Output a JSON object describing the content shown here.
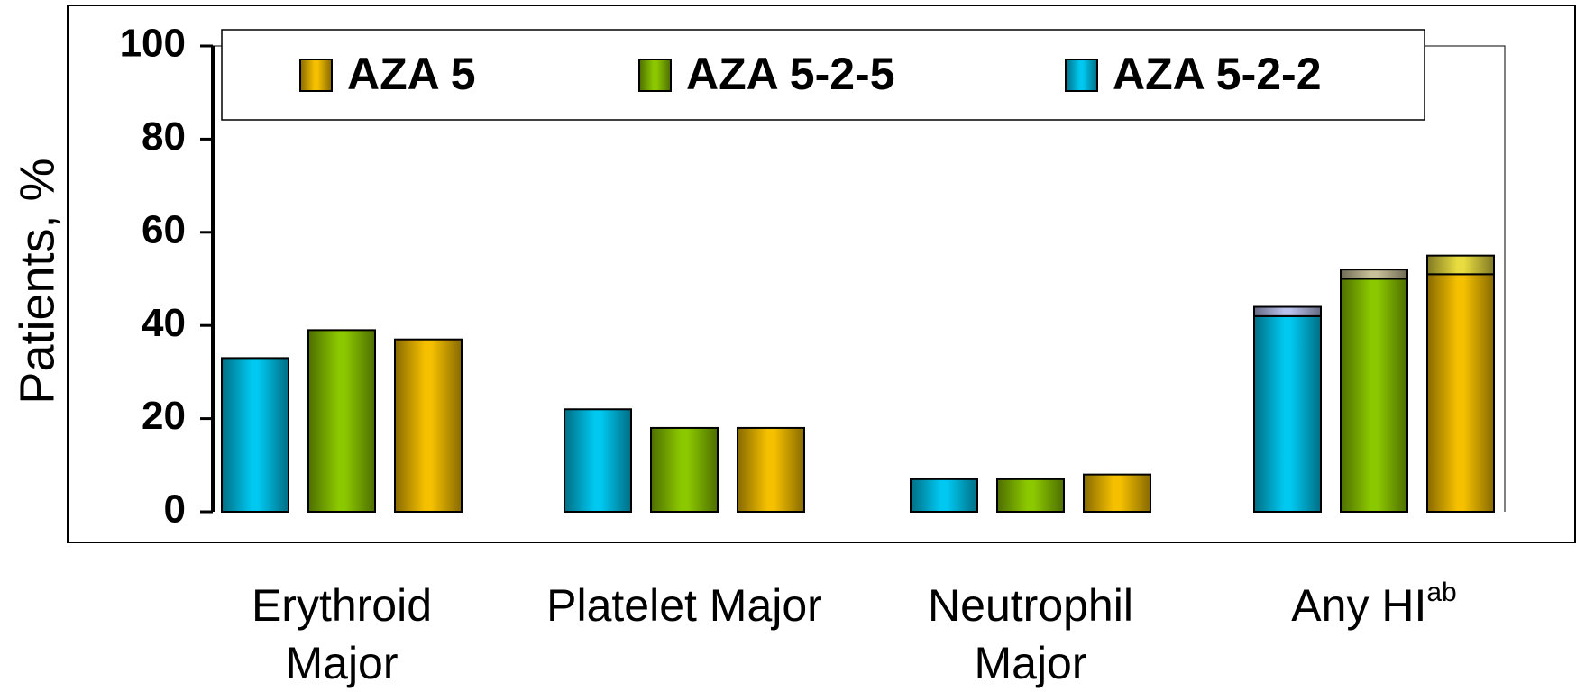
{
  "chart_data": {
    "type": "bar",
    "y_label": "Patients, %",
    "categories": [
      "Erythroid\nMajor",
      "Platelet Major",
      "Neutrophil\nMajor",
      "Any HI"
    ],
    "category_superscripts": [
      null,
      null,
      null,
      "ab"
    ],
    "series": [
      {
        "name": "AZA 5",
        "color": "#f5c000",
        "top_color": "#e8dc40",
        "values": [
          37,
          18,
          8,
          51
        ],
        "top_values": [
          null,
          null,
          null,
          4
        ]
      },
      {
        "name": "AZA 5-2-5",
        "color": "#8cc800",
        "top_color": "#c8c098",
        "values": [
          39,
          18,
          7,
          50
        ],
        "top_values": [
          null,
          null,
          null,
          2
        ]
      },
      {
        "name": "AZA 5-2-2",
        "color": "#00c8f0",
        "top_color": "#b8c0ec",
        "values": [
          33,
          22,
          7,
          42
        ],
        "top_values": [
          null,
          null,
          null,
          2
        ]
      }
    ],
    "ylim": [
      0,
      100
    ],
    "yticks": [
      0,
      20,
      40,
      60,
      80,
      100
    ],
    "grid": false,
    "legend": "top"
  }
}
